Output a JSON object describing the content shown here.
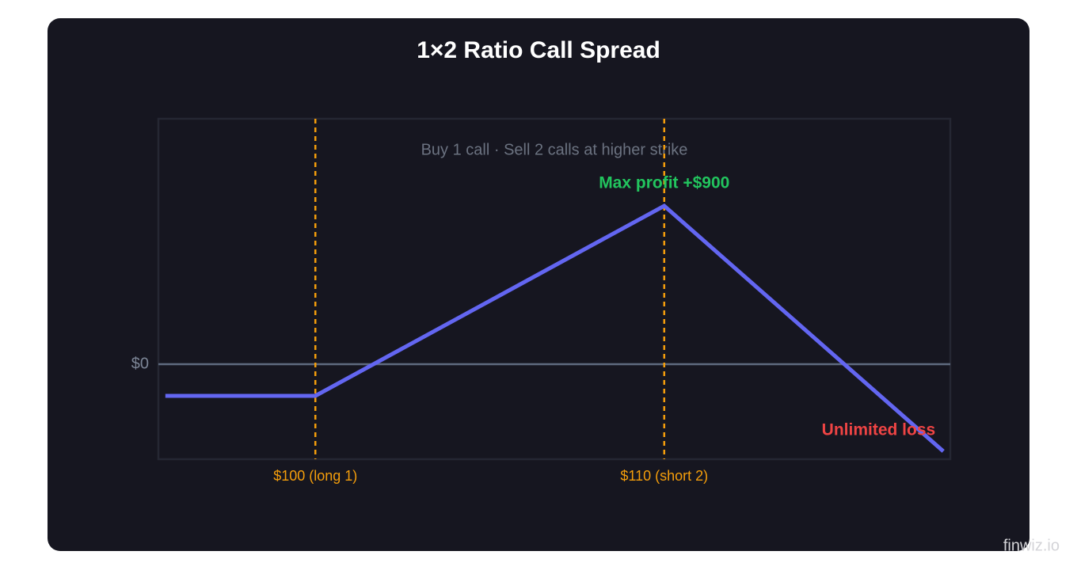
{
  "chart_data": {
    "type": "line",
    "title": "1×2 Ratio Call Spread",
    "subtitle": "Buy 1 call · Sell 2 calls at higher strike",
    "x": [
      95.7,
      100,
      110,
      118
    ],
    "series": [
      {
        "color": "#6366f1",
        "values": [
          -180,
          -180,
          900,
          -495
        ]
      }
    ],
    "xlim": [
      95.5,
      118.2
    ],
    "xticks": [
      {
        "value": 100,
        "label": "$100 (long 1)"
      },
      {
        "value": 110,
        "label": "$110 (short 2)"
      }
    ],
    "xtick_color": "#f59e0b",
    "ylim": [
      -540,
      1395
    ],
    "yticks": [
      {
        "value": 0,
        "label": "$0"
      }
    ],
    "annotations": [
      {
        "text": "Max profit +$900",
        "color": "#22c55e"
      },
      {
        "text": "Unlimited loss",
        "color": "#ef4444"
      }
    ],
    "watermark": "finwiz.io"
  }
}
